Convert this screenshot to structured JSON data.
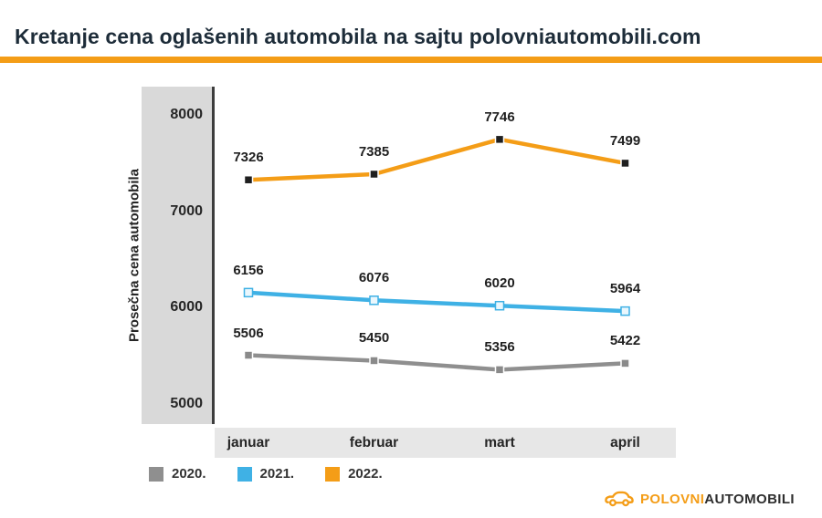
{
  "header": {
    "title": "Kretanje cena oglašenih automobila na sajtu polovniautomobili.com",
    "accent_color": "#F49D17"
  },
  "chart_data": {
    "type": "line",
    "title": "Kretanje cena oglašenih automobila na sajtu polovniautomobili.com",
    "ylabel": "Prosečna cena automobila",
    "xlabel": "",
    "categories": [
      "januar",
      "februar",
      "mart",
      "april"
    ],
    "yticks": [
      5000,
      6000,
      7000,
      8000
    ],
    "ylim": [
      4790,
      8300
    ],
    "grid": false,
    "legend_position": "bottom-left",
    "series": [
      {
        "name": "2020.",
        "color": "#8F8F8F",
        "marker_fill": "#8A8A8A",
        "marker_stroke": "#FFFFFF",
        "values": [
          5506,
          5450,
          5356,
          5422
        ]
      },
      {
        "name": "2021.",
        "color": "#3FB1E5",
        "marker_fill": "#EAF7FD",
        "marker_stroke": "#3FB1E5",
        "values": [
          6156,
          6076,
          6020,
          5964
        ]
      },
      {
        "name": "2022.",
        "color": "#F49D17",
        "marker_fill": "#1F1F1F",
        "marker_stroke": "#FFFFFF",
        "values": [
          7326,
          7385,
          7746,
          7499
        ]
      }
    ]
  },
  "logo": {
    "part1": "POLOVNI",
    "part2": "AUTOMOBILI",
    "brand_color": "#F49D17",
    "text_color": "#2E2E2E",
    "icon": "car-icon"
  }
}
